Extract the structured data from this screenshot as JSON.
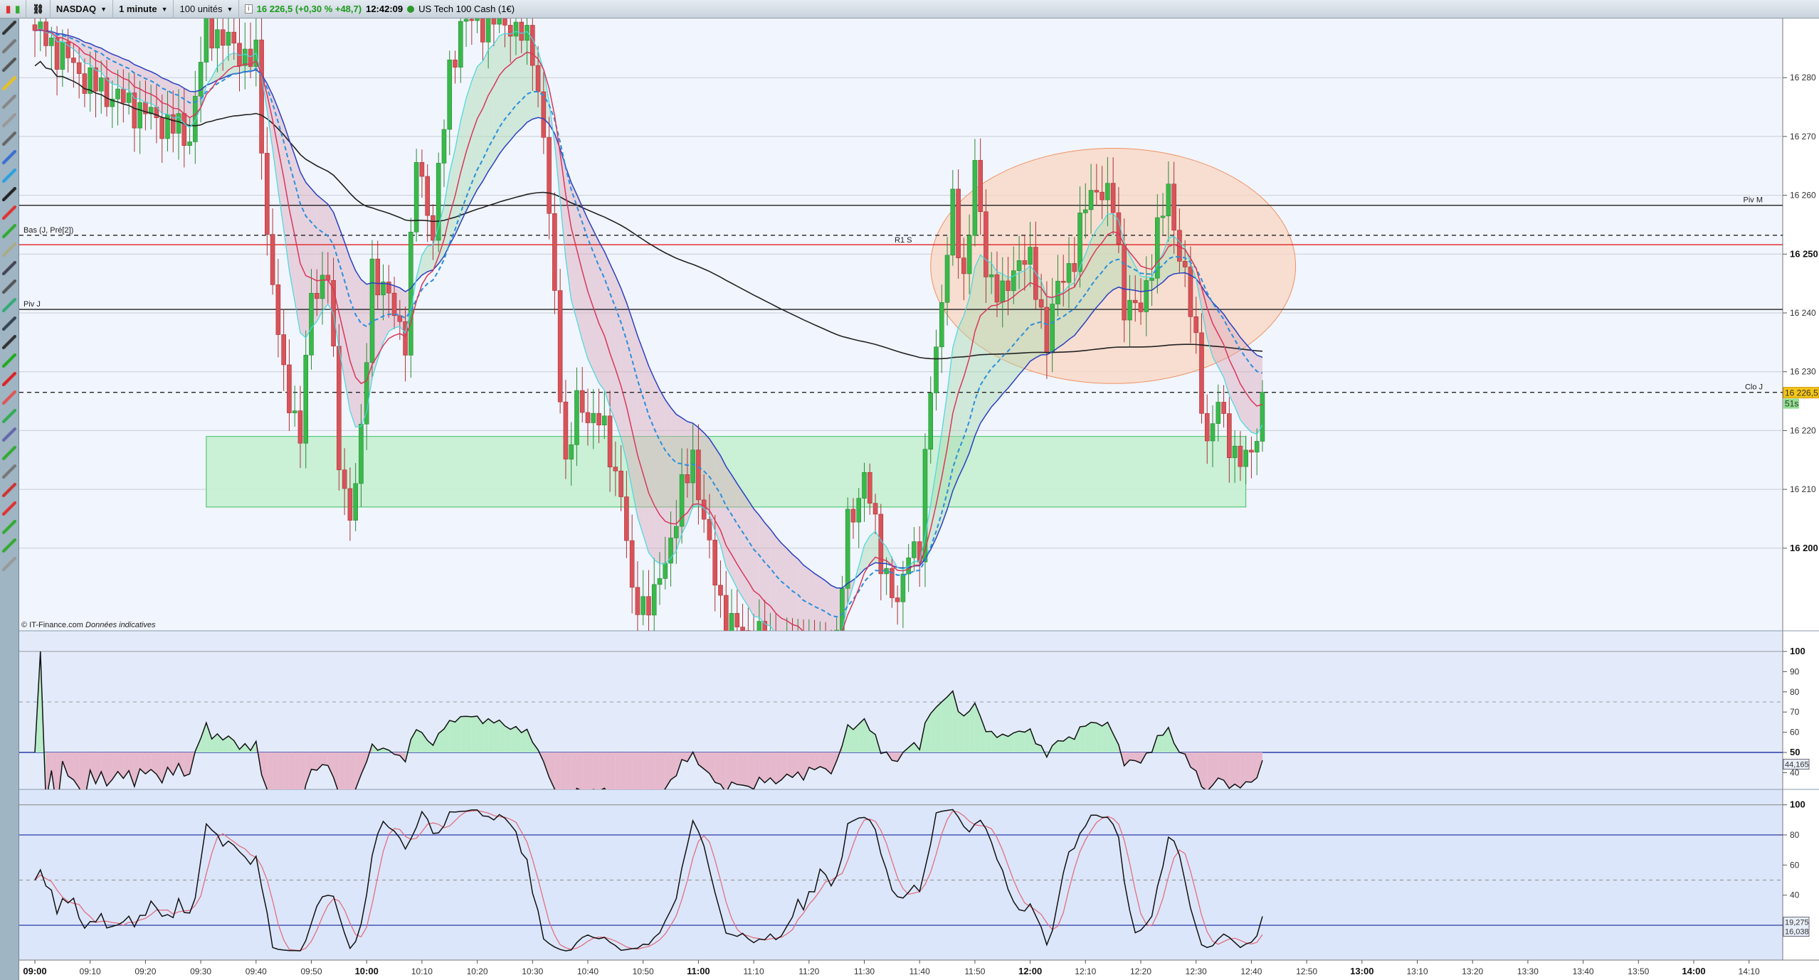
{
  "topbar": {
    "symbol": "NASDAQ",
    "interval": "1 minute",
    "units": "100 unités",
    "info_icon": "info-icon",
    "quote": "16 226,5 (+0,30 % +48,7)",
    "time": "12:42:09",
    "status_color": "#2a9a2a",
    "instrument": "US Tech 100 Cash (1€)"
  },
  "footer": {
    "copyright": "© IT-Finance.com",
    "disclaimer": "Données indicatives"
  },
  "price_axis": {
    "ticks": [
      "16 280",
      "16 270",
      "16 260",
      "16 250",
      "16 240",
      "16 230",
      "16 220",
      "16 210",
      "16 200"
    ],
    "last_price": "16 226,5",
    "countdown": "51s"
  },
  "levels": {
    "piv_m": {
      "label": "Piv M",
      "value": 16258.3
    },
    "bas": {
      "label": "Bas (J, Pré[2])",
      "value": 16253.2
    },
    "r1s": {
      "label": "R1 S",
      "value": 16251.6
    },
    "piv_j": {
      "label": "Piv J",
      "value": 16240.6
    },
    "clo_j": {
      "label": "Clo J",
      "value": 16226.5
    }
  },
  "rsi_panel": {
    "ticks": [
      "100",
      "90",
      "80",
      "70",
      "60",
      "50",
      "40"
    ],
    "readout": "44,165",
    "levels": [
      50,
      75
    ]
  },
  "stoch_panel": {
    "ticks": [
      "100",
      "80",
      "60",
      "40"
    ],
    "readout_k": "19,275",
    "readout_d": "16,038",
    "levels": [
      80,
      50,
      20
    ]
  },
  "time_axis": {
    "ticks": [
      "09:00",
      "09:10",
      "09:20",
      "09:30",
      "09:40",
      "09:50",
      "10:00",
      "10:10",
      "10:20",
      "10:30",
      "10:40",
      "10:50",
      "11:00",
      "11:10",
      "11:20",
      "11:30",
      "11:40",
      "11:50",
      "12:00",
      "12:10",
      "12:20",
      "12:30",
      "12:40",
      "12:50",
      "13:00",
      "13:10",
      "13:20",
      "13:30",
      "13:40",
      "13:50",
      "14:00",
      "14:10"
    ],
    "bold": [
      "09:00",
      "10:00",
      "11:00",
      "12:00",
      "13:00",
      "14:00"
    ]
  },
  "chart_data": {
    "type": "candlestick",
    "price_path": [
      [
        "09:00",
        16288
      ],
      [
        "09:05",
        16284
      ],
      [
        "09:10",
        16279
      ],
      [
        "09:20",
        16274
      ],
      [
        "09:28",
        16270
      ],
      [
        "09:31",
        16289
      ],
      [
        "09:36",
        16285
      ],
      [
        "09:40",
        16283
      ],
      [
        "09:42",
        16254
      ],
      [
        "09:45",
        16228
      ],
      [
        "09:48",
        16220
      ],
      [
        "09:50",
        16242
      ],
      [
        "09:53",
        16248
      ],
      [
        "09:55",
        16214
      ],
      [
        "09:57",
        16206
      ],
      [
        "09:59",
        16218
      ],
      [
        "10:01",
        16248
      ],
      [
        "10:05",
        16240
      ],
      [
        "10:07",
        16236
      ],
      [
        "10:09",
        16266
      ],
      [
        "10:12",
        16254
      ],
      [
        "10:15",
        16281
      ],
      [
        "10:17",
        16289
      ],
      [
        "10:25",
        16290
      ],
      [
        "10:30",
        16285
      ],
      [
        "10:32",
        16270
      ],
      [
        "10:34",
        16242
      ],
      [
        "10:36",
        16214
      ],
      [
        "10:38",
        16224
      ],
      [
        "10:42",
        16222
      ],
      [
        "10:46",
        16210
      ],
      [
        "10:48",
        16191
      ],
      [
        "10:52",
        16191
      ],
      [
        "10:55",
        16202
      ],
      [
        "10:59",
        16216
      ],
      [
        "11:02",
        16199
      ],
      [
        "11:05",
        16187
      ],
      [
        "11:15",
        16183
      ],
      [
        "11:25",
        16184
      ],
      [
        "11:27",
        16204
      ],
      [
        "11:30",
        16212
      ],
      [
        "11:33",
        16199
      ],
      [
        "11:36",
        16189
      ],
      [
        "11:38",
        16201
      ],
      [
        "11:40",
        16199
      ],
      [
        "11:42",
        16228
      ],
      [
        "11:44",
        16242
      ],
      [
        "11:46",
        16258
      ],
      [
        "11:48",
        16246
      ],
      [
        "11:50",
        16264
      ],
      [
        "11:52",
        16248
      ],
      [
        "11:55",
        16242
      ],
      [
        "11:58",
        16250
      ],
      [
        "12:00",
        16248
      ],
      [
        "12:03",
        16236
      ],
      [
        "12:05",
        16244
      ],
      [
        "12:08",
        16250
      ],
      [
        "12:10",
        16258
      ],
      [
        "12:12",
        16262
      ],
      [
        "12:15",
        16258
      ],
      [
        "12:17",
        16242
      ],
      [
        "12:20",
        16240
      ],
      [
        "12:23",
        16254
      ],
      [
        "12:25",
        16260
      ],
      [
        "12:28",
        16246
      ],
      [
        "12:30",
        16234
      ],
      [
        "12:32",
        16218
      ],
      [
        "12:34",
        16224
      ],
      [
        "12:37",
        16216
      ],
      [
        "12:39",
        16214
      ],
      [
        "12:41",
        16220
      ],
      [
        "12:42",
        16226.5
      ]
    ],
    "support_zone": {
      "from": "09:31",
      "to": "12:39",
      "low": 16207,
      "high": 16219,
      "color": "#c5f0d2"
    },
    "ellipse_zone": {
      "from": "11:42",
      "to": "12:48",
      "low": 16228,
      "high": 16268,
      "color": "#f8d5c2"
    },
    "y_range": [
      16185,
      16290
    ],
    "x_range": [
      "08:58",
      "14:14"
    ],
    "colors": {
      "up": "#39b94a",
      "down": "#d9535a",
      "ma_fast": "#d9365a",
      "ma_cyan": "#44d8e0",
      "ma_dashed": "#2a8fdc",
      "ma_blue": "#2a40c0",
      "vwap": "#222222"
    }
  }
}
